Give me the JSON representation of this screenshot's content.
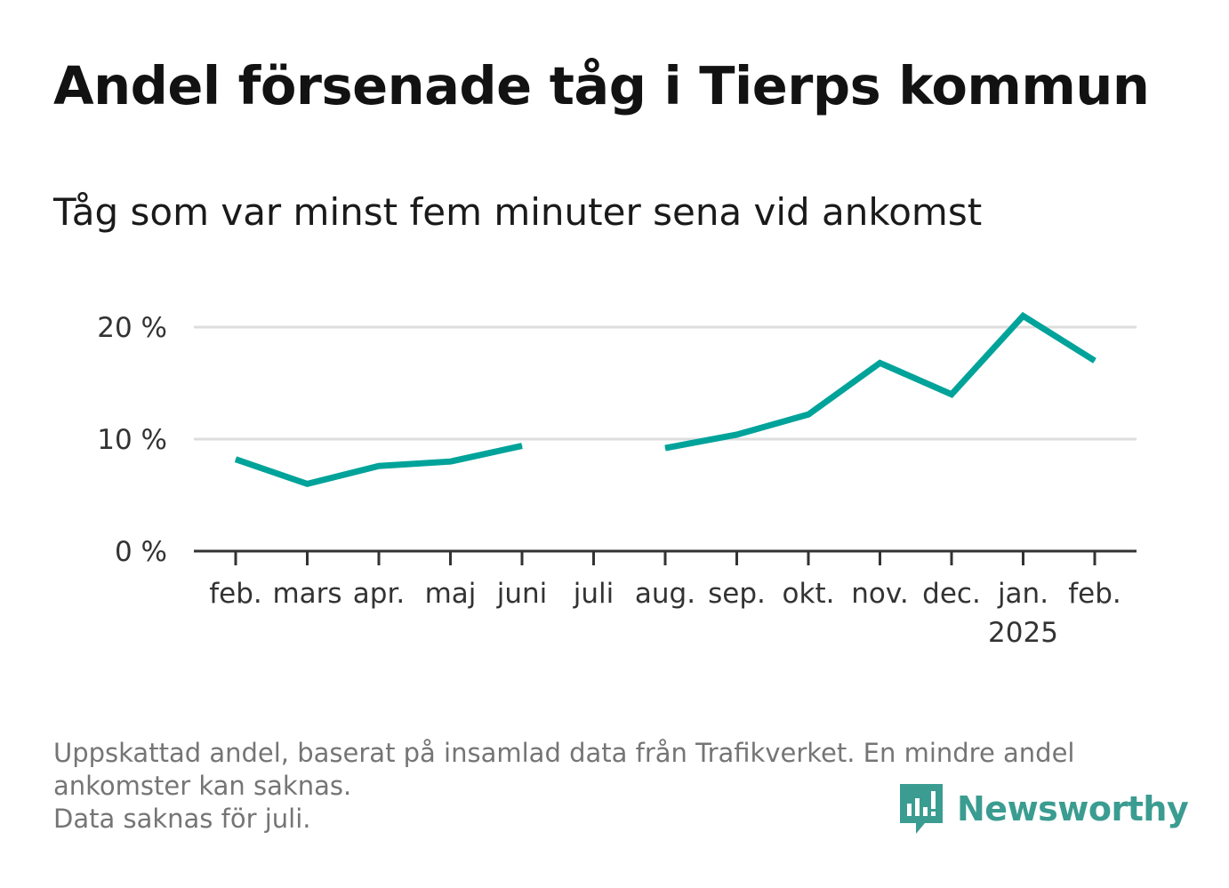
{
  "title": "Andel försenade tåg i Tierps kommun",
  "subtitle": "Tåg som var minst fem minuter sena vid ankomst",
  "chart_data": {
    "type": "line",
    "title": "Andel försenade tåg i Tierps kommun",
    "subtitle": "Tåg som var minst fem minuter sena vid ankomst",
    "categories": [
      "feb.",
      "mars",
      "apr.",
      "maj",
      "juni",
      "juli",
      "aug.",
      "sep.",
      "okt.",
      "nov.",
      "dec.",
      "jan.",
      "feb."
    ],
    "category_sublabels": [
      "",
      "",
      "",
      "",
      "",
      "",
      "",
      "",
      "",
      "",
      "",
      "2025",
      ""
    ],
    "series": [
      {
        "values": [
          8.2,
          6.0,
          7.6,
          8.0,
          9.4,
          null,
          9.2,
          10.4,
          12.2,
          16.8,
          14.0,
          21.0,
          17.0
        ],
        "color": "#00a39a"
      }
    ],
    "y_ticks": [
      0,
      10,
      20
    ],
    "y_tick_labels": [
      "0 %",
      "10 %",
      "20 %"
    ],
    "ylim": [
      0,
      23
    ],
    "xlabel": "",
    "ylabel": "",
    "grid": true,
    "legend": "none"
  },
  "footnote": {
    "lines": [
      "Uppskattad andel, baserat på insamlad data från Trafikverket. En mindre andel",
      "ankomster kan saknas.",
      "Data saknas för juli."
    ]
  },
  "brand": {
    "name": "Newsworthy",
    "icon": "newsworthy-logo-icon",
    "color": "#3b9c91"
  },
  "colors": {
    "line": "#00a39a",
    "grid": "#dddddd",
    "axis": "#333333"
  }
}
